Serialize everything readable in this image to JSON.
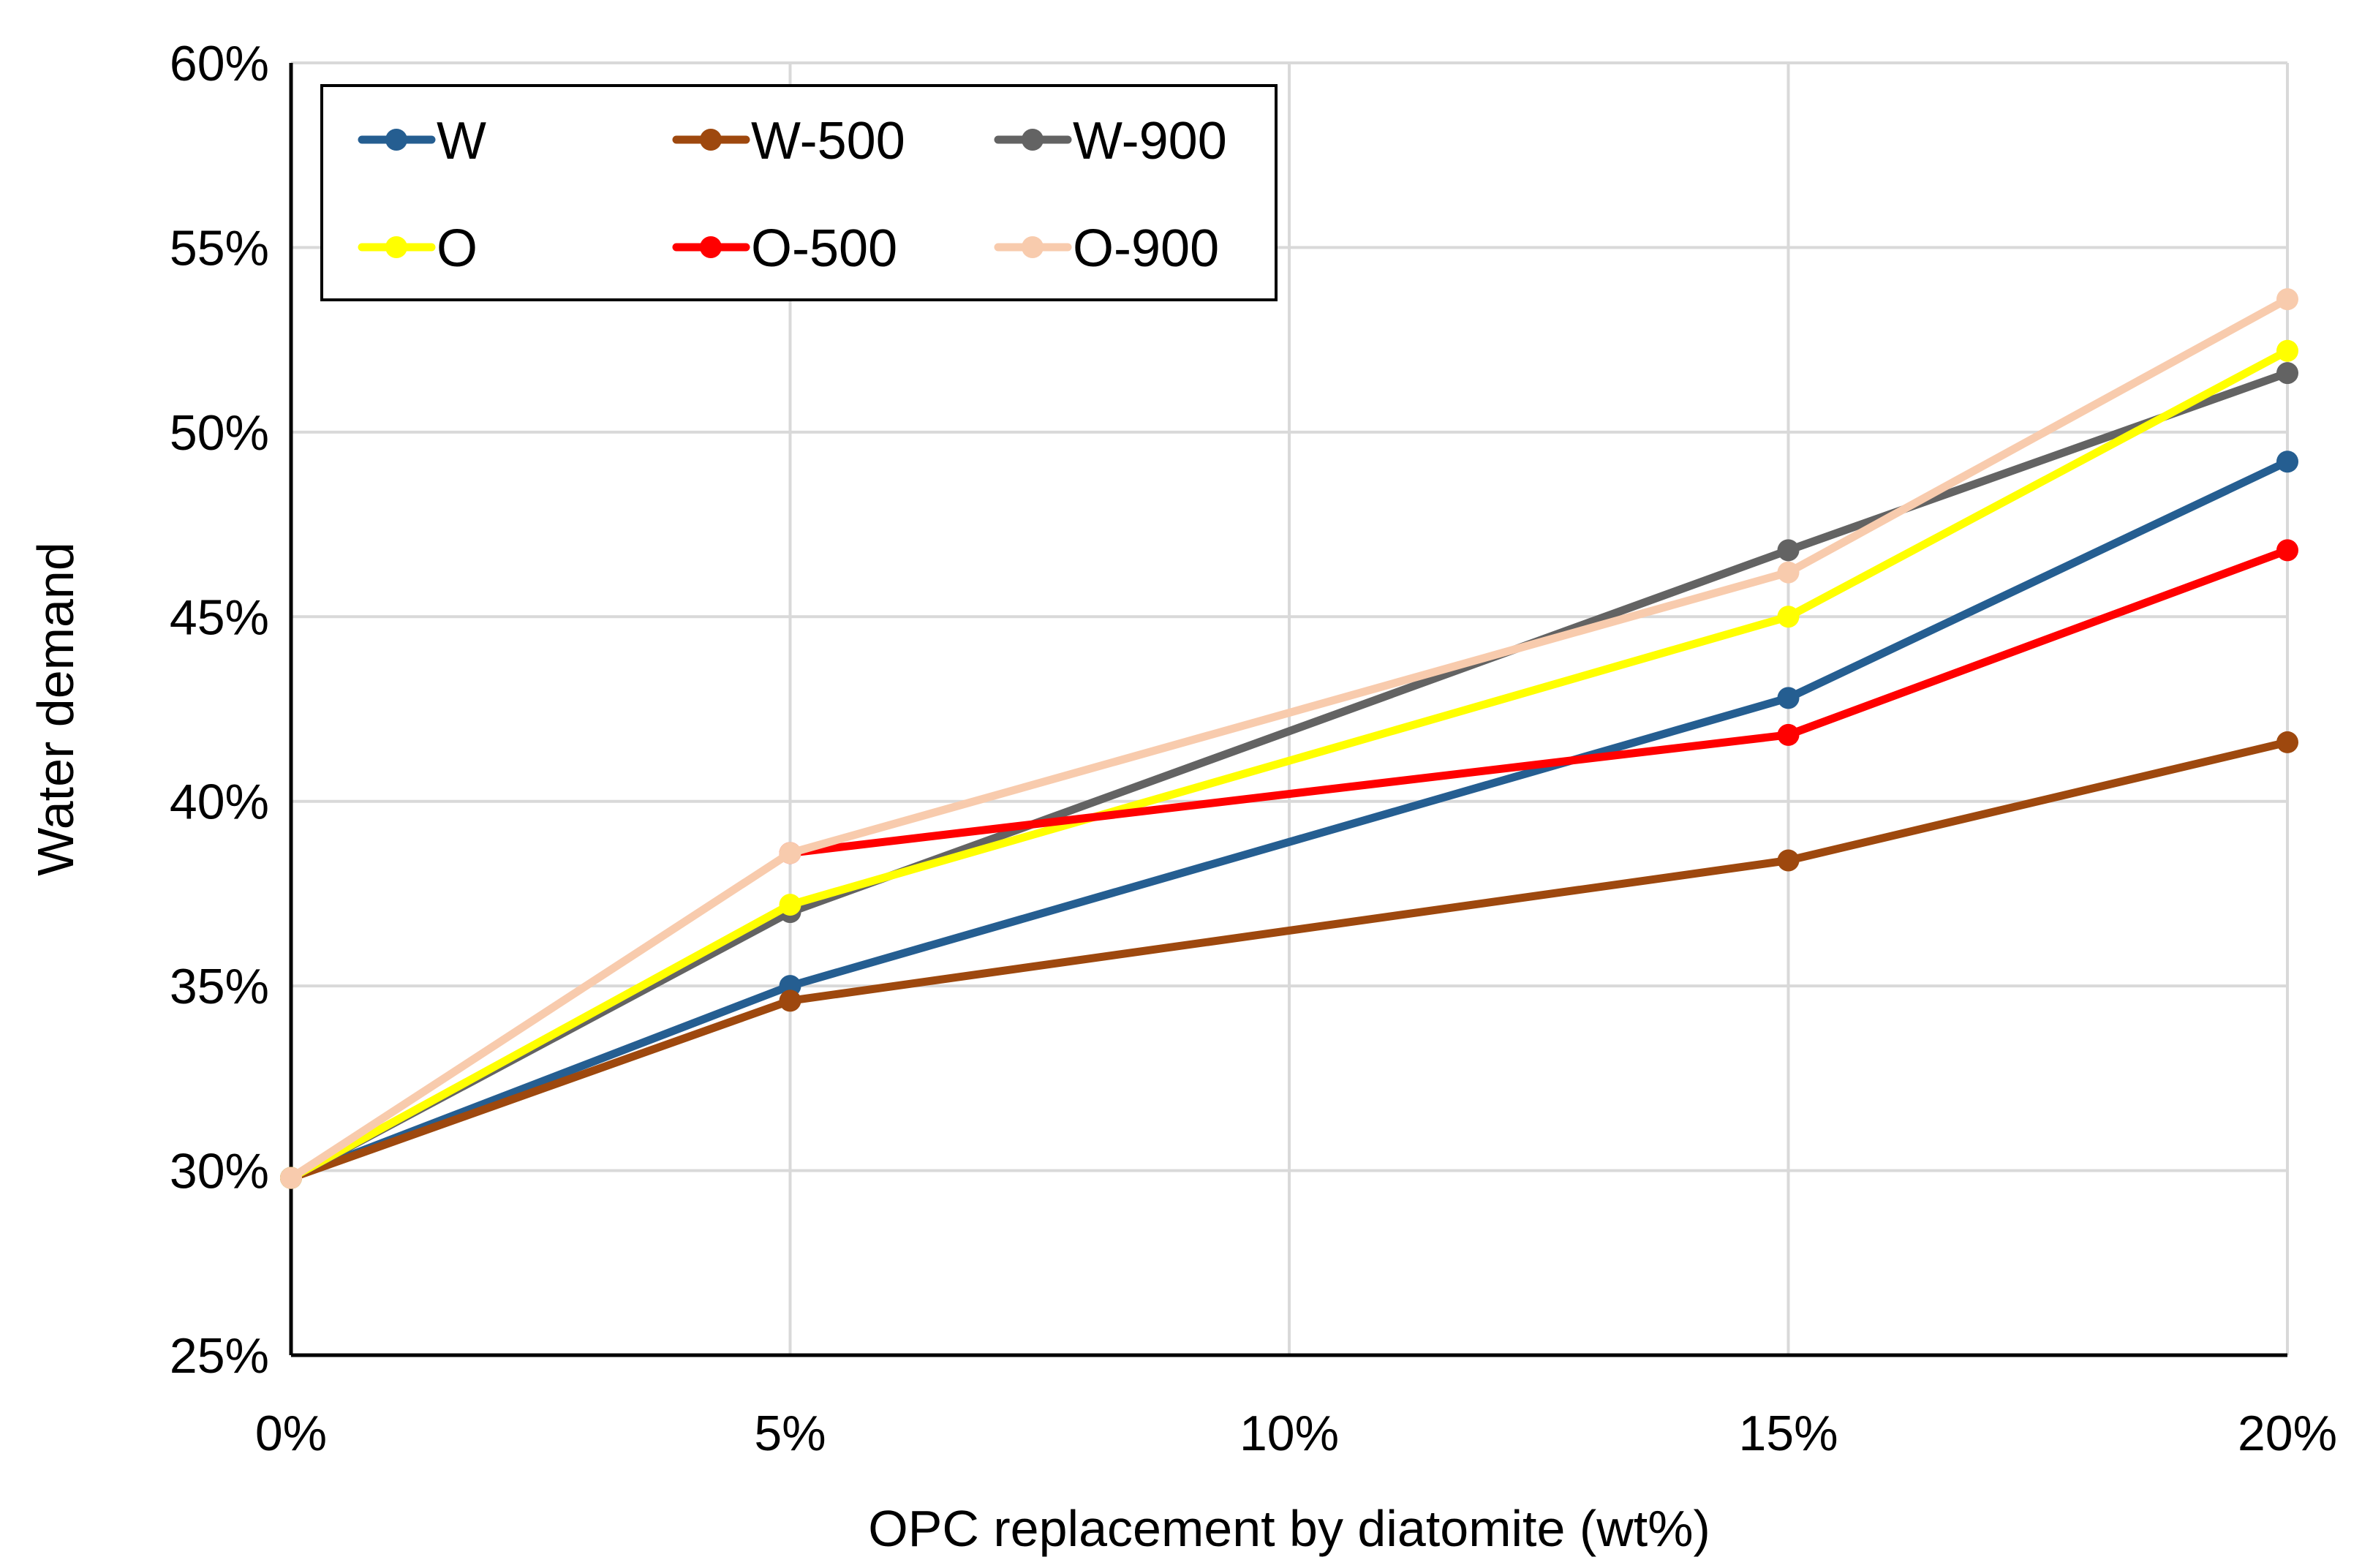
{
  "chart_data": {
    "type": "line",
    "title": "",
    "xlabel": "OPC replacement by diatomite (wt%)",
    "ylabel": "Water demand",
    "x": [
      0,
      5,
      10,
      15,
      20
    ],
    "x_tick_labels": [
      "0%",
      "5%",
      "10%",
      "15%",
      "20%"
    ],
    "xlim": [
      0,
      20
    ],
    "ylim": [
      25,
      60
    ],
    "y_ticks": [
      25,
      30,
      35,
      40,
      45,
      50,
      55,
      60
    ],
    "y_tick_labels": [
      "25%",
      "30%",
      "35%",
      "40%",
      "45%",
      "50%",
      "55%",
      "60%"
    ],
    "grid": true,
    "legend_position": "top-left",
    "series": [
      {
        "name": "W",
        "color": "#255E91",
        "x": [
          0,
          5,
          15,
          20
        ],
        "values": [
          29.8,
          35.0,
          42.8,
          49.2
        ]
      },
      {
        "name": "W-500",
        "color": "#9E480E",
        "x": [
          0,
          5,
          15,
          20
        ],
        "values": [
          29.8,
          34.6,
          38.4,
          41.6
        ]
      },
      {
        "name": "W-900",
        "color": "#636363",
        "x": [
          0,
          5,
          15,
          20
        ],
        "values": [
          29.8,
          37.0,
          46.8,
          51.6
        ]
      },
      {
        "name": "O",
        "color": "#FFFF00",
        "x": [
          0,
          5,
          15,
          20
        ],
        "values": [
          29.8,
          37.2,
          45.0,
          52.2
        ]
      },
      {
        "name": "O-500",
        "color": "#FF0000",
        "x": [
          5,
          15,
          20
        ],
        "values": [
          38.6,
          41.8,
          46.8
        ]
      },
      {
        "name": "O-900",
        "color": "#F8CBAD",
        "x": [
          0,
          5,
          15,
          20
        ],
        "values": [
          29.8,
          38.6,
          46.2,
          53.6
        ]
      }
    ]
  }
}
